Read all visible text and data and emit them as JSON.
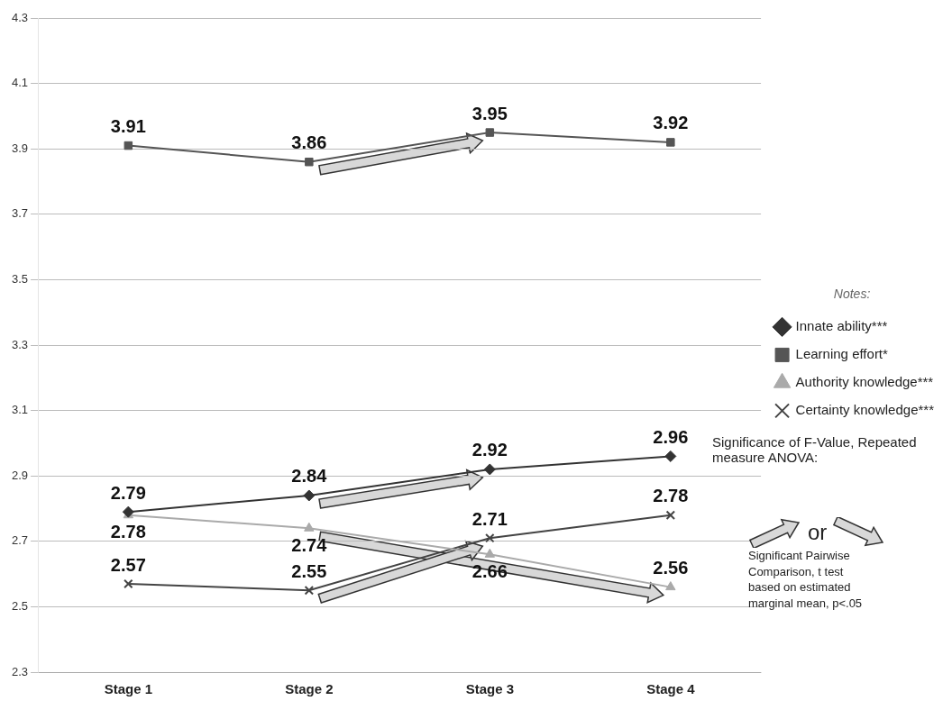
{
  "chart_data": {
    "type": "line",
    "categories": [
      "Stage 1",
      "Stage 2",
      "Stage 3",
      "Stage 4"
    ],
    "series": [
      {
        "name": "Innate ability***",
        "color": "#333333",
        "marker": "diamond",
        "values": [
          2.79,
          2.84,
          2.92,
          2.96
        ]
      },
      {
        "name": "Learning effort*",
        "color": "#555555",
        "marker": "square",
        "values": [
          3.91,
          3.86,
          3.95,
          3.92
        ]
      },
      {
        "name": "Authority knowledge***",
        "color": "#aaaaaa",
        "marker": "triangle",
        "values": [
          2.78,
          2.74,
          2.66,
          2.56
        ]
      },
      {
        "name": "Certainty knowledge***",
        "color": "#444444",
        "marker": "cross",
        "values": [
          2.57,
          2.55,
          2.71,
          2.78
        ]
      }
    ],
    "ylim": [
      2.3,
      4.3
    ],
    "yticks": [
      2.3,
      2.5,
      2.7,
      2.9,
      3.1,
      3.3,
      3.5,
      3.7,
      3.9,
      4.1,
      4.3
    ],
    "grid": "y",
    "legend": "right",
    "legend_title": "Notes:",
    "data_labels": true,
    "annotations": [
      "Significance of F-Value, Repeated measure ANOVA:",
      "or",
      "Significant Pairwise Comparison, t test based on estimated marginal mean, p<.05"
    ]
  }
}
